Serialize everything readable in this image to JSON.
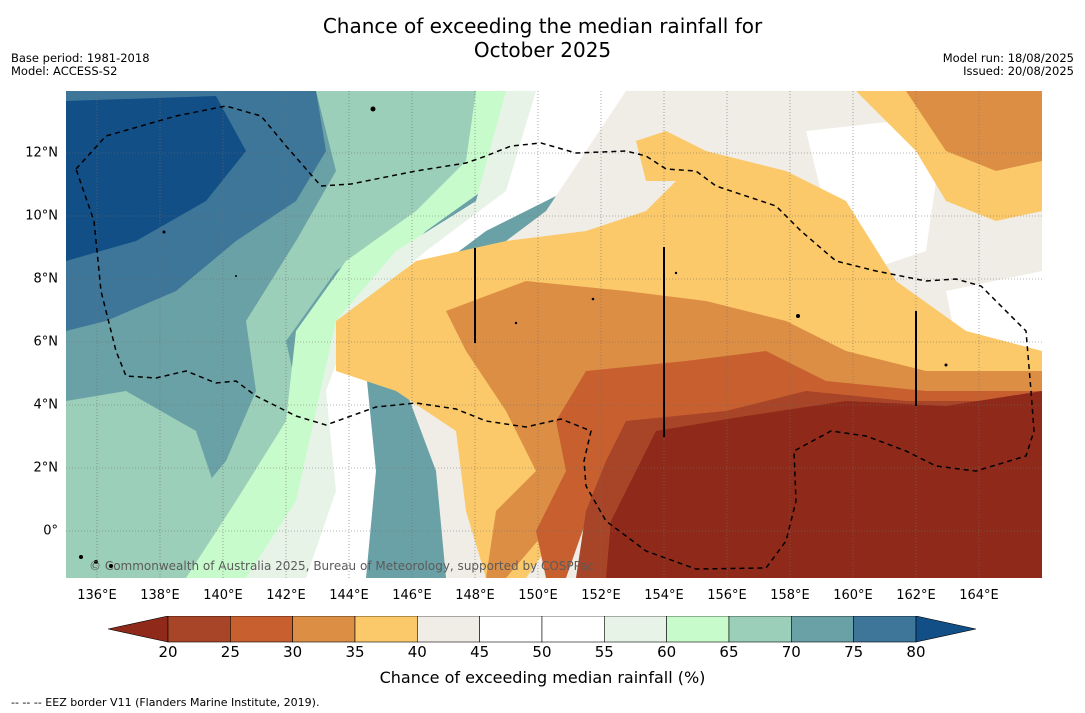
{
  "title_line1": "Chance of exceeding the median rainfall for",
  "title_line2": "October 2025",
  "meta_left": {
    "base_period": "Base period: 1981-2018",
    "model": "Model: ACCESS-S2"
  },
  "meta_right": {
    "model_run": "Model run: 18/08/2025",
    "issued": "Issued: 20/08/2025"
  },
  "copyright": "© Commonwealth of Australia 2025, Bureau of Meteorology, supported by COSPPac",
  "x_ticks": [
    "136°E",
    "138°E",
    "140°E",
    "142°E",
    "144°E",
    "146°E",
    "148°E",
    "150°E",
    "152°E",
    "154°E",
    "156°E",
    "158°E",
    "160°E",
    "162°E",
    "164°E"
  ],
  "y_ticks": [
    "12°N",
    "10°N",
    "8°N",
    "6°N",
    "4°N",
    "2°N",
    "0°"
  ],
  "colorbar": {
    "label": "Chance of exceeding median rainfall (%)",
    "ticks": [
      "20",
      "25",
      "30",
      "35",
      "40",
      "45",
      "50",
      "55",
      "60",
      "65",
      "70",
      "75",
      "80"
    ],
    "under_color": "#8f2a1b",
    "over_color": "#124f86",
    "colors": [
      "#a84427",
      "#c75f2f",
      "#dd8e45",
      "#fbc96a",
      "#f0ece6",
      "#ffffff",
      "#ffffff",
      "#e8f3e8",
      "#c8fbcb",
      "#9ccfb9",
      "#6aa1a6",
      "#3e7699"
    ]
  },
  "footnote": "--  --  -- EEZ border V11 (Flanders Marine Institute, 2019).",
  "chart_data": {
    "type": "heatmap",
    "title": "Chance of exceeding the median rainfall for October 2025",
    "variable": "Chance of exceeding median rainfall (%)",
    "lon_range": [
      135,
      166
    ],
    "lat_range": [
      -1.5,
      14
    ],
    "levels": [
      20,
      25,
      30,
      35,
      40,
      45,
      50,
      55,
      60,
      65,
      70,
      75,
      80
    ],
    "grid": true,
    "regions": [
      {
        "area": "far north-west (Philippine Sea)",
        "value_range": "75-80+"
      },
      {
        "area": "west (136-142E)",
        "value_range": "60-75"
      },
      {
        "area": "central (144-150E)",
        "value_range": "45-60"
      },
      {
        "area": "band 6-9N, 146-156E",
        "value_range": "35-40"
      },
      {
        "area": "north-east (156-165E, 11-14N)",
        "value_range": "30-40"
      },
      {
        "area": "south-east (152-165E, -1 to 4N)",
        "value_range": "<20"
      }
    ]
  }
}
